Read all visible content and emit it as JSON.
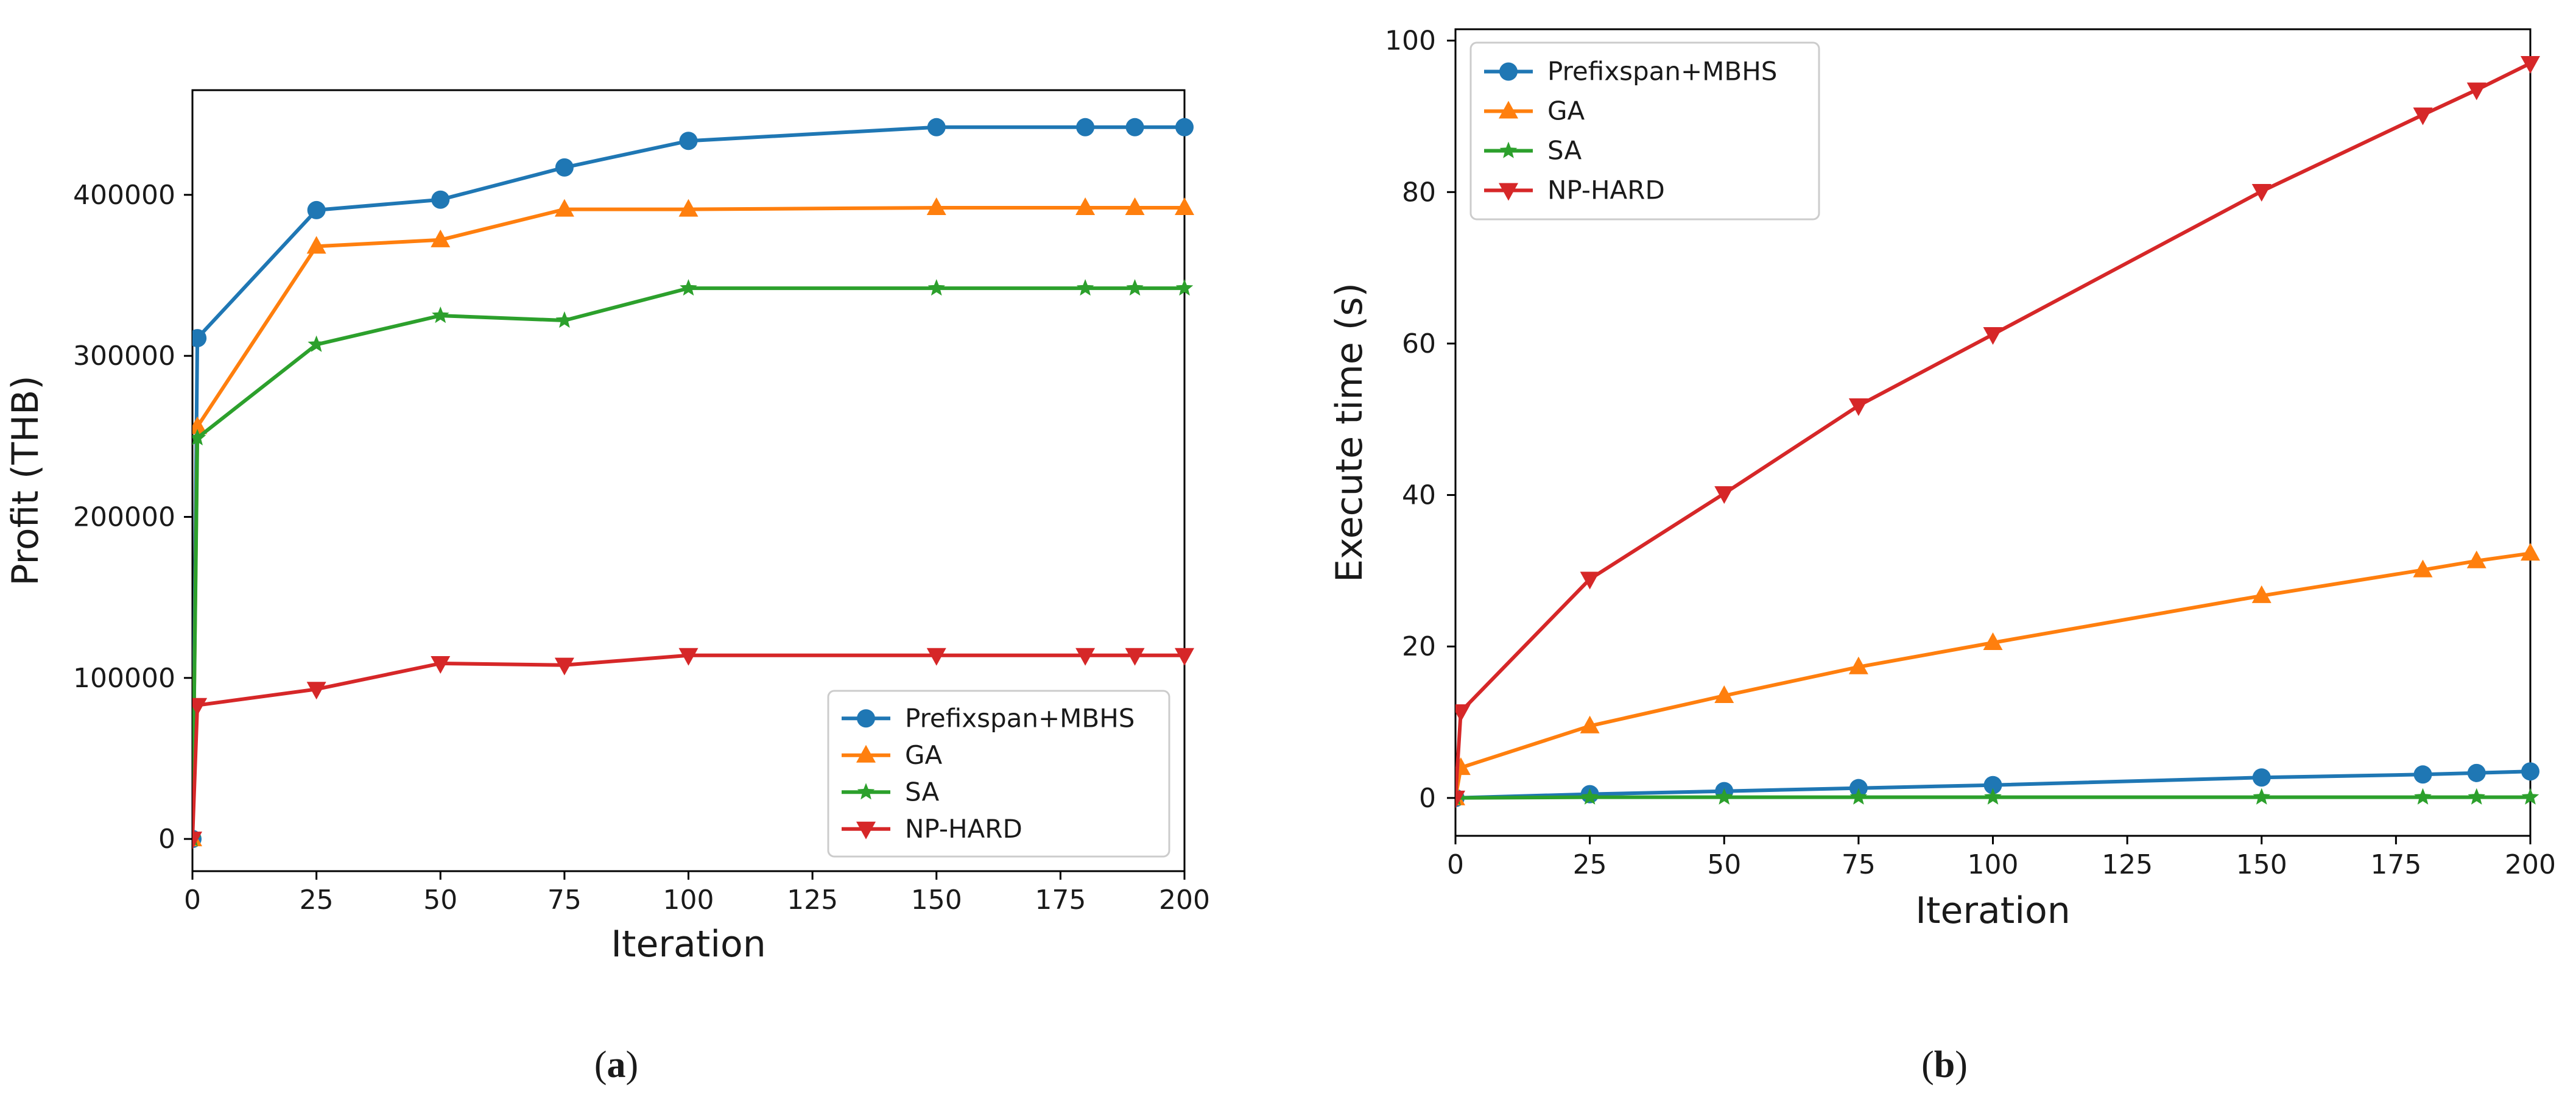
{
  "chart_data": [
    {
      "type": "line",
      "caption_paren_open": "(",
      "caption_letter": "a",
      "caption_paren_close": ")",
      "xlabel": "Iteration",
      "ylabel": "Profit (THB)",
      "xlim": [
        0,
        200
      ],
      "ylim": [
        -20000,
        465000
      ],
      "xticks": [
        0,
        25,
        50,
        75,
        100,
        125,
        150,
        175,
        200
      ],
      "yticks": [
        0,
        100000,
        200000,
        300000,
        400000
      ],
      "ytick_labels": [
        "0",
        "100000",
        "200000",
        "300000",
        "400000"
      ],
      "legend_position": "lower-right",
      "series": [
        {
          "name": "Prefixspan+MBHS",
          "color": "#1f77b4",
          "marker": "circle",
          "x": [
            0,
            1,
            25,
            50,
            75,
            100,
            150,
            180,
            190,
            200
          ],
          "y": [
            0,
            311000,
            390500,
            397000,
            417000,
            433500,
            442000,
            442000,
            442000,
            442000
          ]
        },
        {
          "name": "GA",
          "color": "#ff7f0e",
          "marker": "triangle-up",
          "x": [
            0,
            1,
            25,
            50,
            75,
            100,
            150,
            180,
            190,
            200
          ],
          "y": [
            0,
            256000,
            368000,
            372000,
            391000,
            391000,
            392000,
            392000,
            392000,
            392000
          ]
        },
        {
          "name": "SA",
          "color": "#2ca02c",
          "marker": "star",
          "x": [
            0,
            1,
            25,
            50,
            75,
            100,
            150,
            180,
            190,
            200
          ],
          "y": [
            0,
            249000,
            307000,
            325000,
            322000,
            342000,
            342000,
            342000,
            342000,
            342000
          ]
        },
        {
          "name": "NP-HARD",
          "color": "#d62728",
          "marker": "triangle-down",
          "x": [
            0,
            1,
            25,
            50,
            75,
            100,
            150,
            180,
            190,
            200
          ],
          "y": [
            0,
            83000,
            93000,
            109000,
            108000,
            114000,
            114000,
            114000,
            114000,
            114000
          ]
        }
      ]
    },
    {
      "type": "line",
      "caption_paren_open": "(",
      "caption_letter": "b",
      "caption_paren_close": ")",
      "xlabel": "Iteration",
      "ylabel": "Execute time (s)",
      "xlim": [
        0,
        200
      ],
      "ylim": [
        -5,
        101.5
      ],
      "xticks": [
        0,
        25,
        50,
        75,
        100,
        125,
        150,
        175,
        200
      ],
      "yticks": [
        0,
        20,
        40,
        60,
        80,
        100
      ],
      "ytick_labels": [
        "0",
        "20",
        "40",
        "60",
        "80",
        "100"
      ],
      "legend_position": "upper-left",
      "series": [
        {
          "name": "Prefixspan+MBHS",
          "color": "#1f77b4",
          "marker": "circle",
          "x": [
            0,
            25,
            50,
            75,
            100,
            150,
            180,
            190,
            200
          ],
          "y": [
            0,
            0.5,
            0.9,
            1.3,
            1.7,
            2.7,
            3.1,
            3.3,
            3.5
          ]
        },
        {
          "name": "GA",
          "color": "#ff7f0e",
          "marker": "triangle-up",
          "x": [
            0,
            1,
            25,
            50,
            75,
            100,
            150,
            180,
            190,
            200
          ],
          "y": [
            0,
            4,
            9.5,
            13.5,
            17.3,
            20.5,
            26.7,
            30.1,
            31.3,
            32.3
          ]
        },
        {
          "name": "SA",
          "color": "#2ca02c",
          "marker": "star",
          "x": [
            0,
            25,
            50,
            75,
            100,
            150,
            180,
            190,
            200
          ],
          "y": [
            0,
            0.1,
            0.1,
            0.1,
            0.1,
            0.1,
            0.1,
            0.1,
            0.1
          ]
        },
        {
          "name": "NP-HARD",
          "color": "#d62728",
          "marker": "triangle-down",
          "x": [
            0,
            1,
            25,
            50,
            75,
            100,
            150,
            180,
            190,
            200
          ],
          "y": [
            0,
            11.4,
            28.9,
            40.2,
            51.8,
            61.2,
            80.1,
            90.2,
            93.5,
            97
          ]
        }
      ]
    }
  ]
}
